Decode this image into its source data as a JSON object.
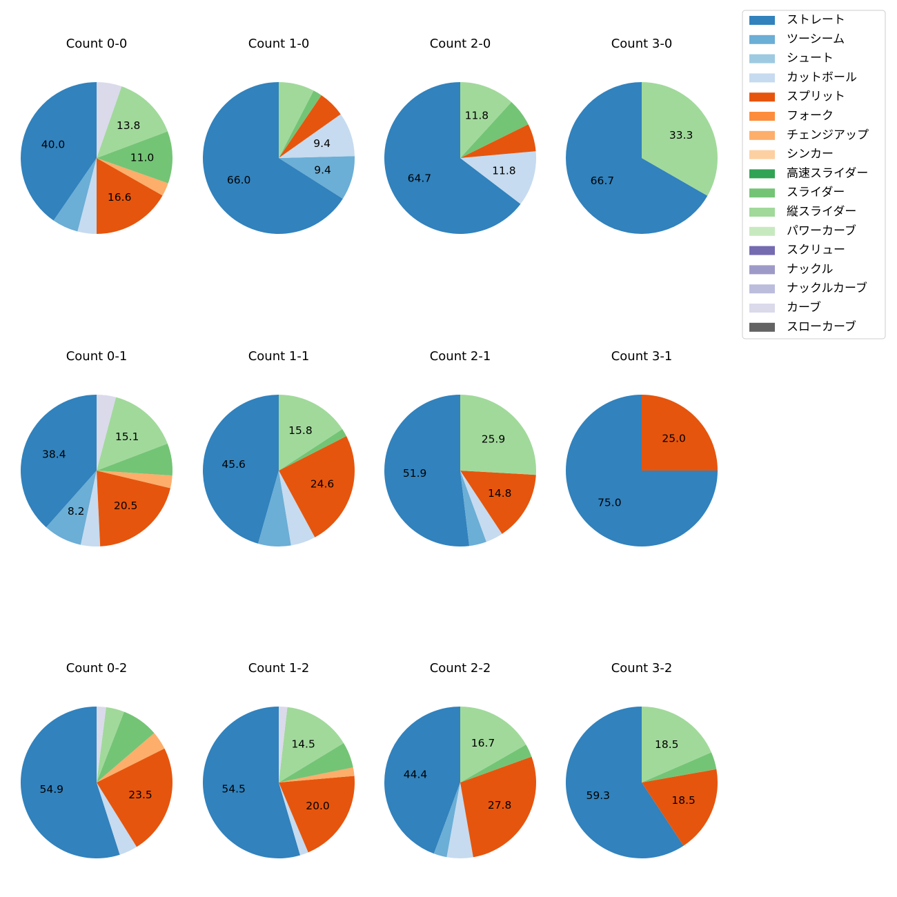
{
  "categories": [
    {
      "name": "ストレート",
      "color": "#3182bd"
    },
    {
      "name": "ツーシーム",
      "color": "#6baed6"
    },
    {
      "name": "シュート",
      "color": "#9ecae1"
    },
    {
      "name": "カットボール",
      "color": "#c6dbef"
    },
    {
      "name": "スプリット",
      "color": "#e6550d"
    },
    {
      "name": "フォーク",
      "color": "#fd8d3c"
    },
    {
      "name": "チェンジアップ",
      "color": "#fdae6b"
    },
    {
      "name": "シンカー",
      "color": "#fdd0a2"
    },
    {
      "name": "高速スライダー",
      "color": "#31a354"
    },
    {
      "name": "スライダー",
      "color": "#74c476"
    },
    {
      "name": "縦スライダー",
      "color": "#a1d99b"
    },
    {
      "name": "パワーカーブ",
      "color": "#c7e9c0"
    },
    {
      "name": "スクリュー",
      "color": "#756bb1"
    },
    {
      "name": "ナックル",
      "color": "#9e9ac8"
    },
    {
      "name": "ナックルカーブ",
      "color": "#bcbddc"
    },
    {
      "name": "カーブ",
      "color": "#dadaeb"
    },
    {
      "name": "スローカーブ",
      "color": "#636363"
    }
  ],
  "chart_data": [
    {
      "type": "pie",
      "title": "Count 0-0",
      "slices": [
        {
          "category": "ストレート",
          "value": 40.0,
          "label": "40.0"
        },
        {
          "category": "ツーシーム",
          "value": 5.5,
          "label": ""
        },
        {
          "category": "カットボール",
          "value": 4.0,
          "label": ""
        },
        {
          "category": "スプリット",
          "value": 16.6,
          "label": "16.6"
        },
        {
          "category": "チェンジアップ",
          "value": 2.8,
          "label": ""
        },
        {
          "category": "スライダー",
          "value": 11.0,
          "label": "11.0"
        },
        {
          "category": "縦スライダー",
          "value": 13.8,
          "label": "13.8"
        },
        {
          "category": "カーブ",
          "value": 5.3,
          "label": ""
        }
      ]
    },
    {
      "type": "pie",
      "title": "Count 1-0",
      "slices": [
        {
          "category": "ストレート",
          "value": 66.0,
          "label": "66.0"
        },
        {
          "category": "ツーシーム",
          "value": 9.4,
          "label": "9.4"
        },
        {
          "category": "カットボール",
          "value": 9.4,
          "label": "9.4"
        },
        {
          "category": "スプリット",
          "value": 5.7,
          "label": ""
        },
        {
          "category": "スライダー",
          "value": 1.9,
          "label": ""
        },
        {
          "category": "縦スライダー",
          "value": 7.6,
          "label": ""
        }
      ]
    },
    {
      "type": "pie",
      "title": "Count 2-0",
      "slices": [
        {
          "category": "ストレート",
          "value": 64.7,
          "label": "64.7"
        },
        {
          "category": "カットボール",
          "value": 11.8,
          "label": "11.8"
        },
        {
          "category": "スプリット",
          "value": 5.9,
          "label": ""
        },
        {
          "category": "スライダー",
          "value": 5.9,
          "label": ""
        },
        {
          "category": "縦スライダー",
          "value": 11.8,
          "label": "11.8"
        }
      ]
    },
    {
      "type": "pie",
      "title": "Count 3-0",
      "slices": [
        {
          "category": "ストレート",
          "value": 66.7,
          "label": "66.7"
        },
        {
          "category": "縦スライダー",
          "value": 33.3,
          "label": "33.3"
        }
      ]
    },
    {
      "type": "pie",
      "title": "Count 0-1",
      "slices": [
        {
          "category": "ストレート",
          "value": 38.4,
          "label": "38.4"
        },
        {
          "category": "ツーシーム",
          "value": 8.2,
          "label": "8.2"
        },
        {
          "category": "カットボール",
          "value": 4.1,
          "label": ""
        },
        {
          "category": "スプリット",
          "value": 20.5,
          "label": "20.5"
        },
        {
          "category": "チェンジアップ",
          "value": 2.7,
          "label": ""
        },
        {
          "category": "スライダー",
          "value": 6.8,
          "label": ""
        },
        {
          "category": "縦スライダー",
          "value": 15.1,
          "label": "15.1"
        },
        {
          "category": "カーブ",
          "value": 4.1,
          "label": ""
        }
      ]
    },
    {
      "type": "pie",
      "title": "Count 1-1",
      "slices": [
        {
          "category": "ストレート",
          "value": 45.6,
          "label": "45.6"
        },
        {
          "category": "ツーシーム",
          "value": 7.0,
          "label": ""
        },
        {
          "category": "カットボール",
          "value": 5.3,
          "label": ""
        },
        {
          "category": "スプリット",
          "value": 24.6,
          "label": "24.6"
        },
        {
          "category": "スライダー",
          "value": 1.7,
          "label": ""
        },
        {
          "category": "縦スライダー",
          "value": 15.8,
          "label": "15.8"
        }
      ]
    },
    {
      "type": "pie",
      "title": "Count 2-1",
      "slices": [
        {
          "category": "ストレート",
          "value": 51.9,
          "label": "51.9"
        },
        {
          "category": "ツーシーム",
          "value": 3.7,
          "label": ""
        },
        {
          "category": "カットボール",
          "value": 3.7,
          "label": ""
        },
        {
          "category": "スプリット",
          "value": 14.8,
          "label": "14.8"
        },
        {
          "category": "縦スライダー",
          "value": 25.9,
          "label": "25.9"
        }
      ]
    },
    {
      "type": "pie",
      "title": "Count 3-1",
      "slices": [
        {
          "category": "ストレート",
          "value": 75.0,
          "label": "75.0"
        },
        {
          "category": "スプリット",
          "value": 25.0,
          "label": "25.0"
        }
      ]
    },
    {
      "type": "pie",
      "title": "Count 0-2",
      "slices": [
        {
          "category": "ストレート",
          "value": 54.9,
          "label": "54.9"
        },
        {
          "category": "カットボール",
          "value": 3.9,
          "label": ""
        },
        {
          "category": "スプリット",
          "value": 23.5,
          "label": "23.5"
        },
        {
          "category": "チェンジアップ",
          "value": 3.9,
          "label": ""
        },
        {
          "category": "スライダー",
          "value": 7.8,
          "label": ""
        },
        {
          "category": "縦スライダー",
          "value": 3.9,
          "label": ""
        },
        {
          "category": "カーブ",
          "value": 2.0,
          "label": ""
        }
      ]
    },
    {
      "type": "pie",
      "title": "Count 1-2",
      "slices": [
        {
          "category": "ストレート",
          "value": 54.5,
          "label": "54.5"
        },
        {
          "category": "カットボール",
          "value": 1.8,
          "label": ""
        },
        {
          "category": "スプリット",
          "value": 20.0,
          "label": "20.0"
        },
        {
          "category": "チェンジアップ",
          "value": 1.8,
          "label": ""
        },
        {
          "category": "スライダー",
          "value": 5.5,
          "label": ""
        },
        {
          "category": "縦スライダー",
          "value": 14.5,
          "label": "14.5"
        },
        {
          "category": "カーブ",
          "value": 1.8,
          "label": ""
        }
      ]
    },
    {
      "type": "pie",
      "title": "Count 2-2",
      "slices": [
        {
          "category": "ストレート",
          "value": 44.4,
          "label": "44.4"
        },
        {
          "category": "ツーシーム",
          "value": 2.8,
          "label": ""
        },
        {
          "category": "カットボール",
          "value": 5.6,
          "label": ""
        },
        {
          "category": "スプリット",
          "value": 27.8,
          "label": "27.8"
        },
        {
          "category": "スライダー",
          "value": 2.8,
          "label": ""
        },
        {
          "category": "縦スライダー",
          "value": 16.7,
          "label": "16.7"
        }
      ]
    },
    {
      "type": "pie",
      "title": "Count 3-2",
      "slices": [
        {
          "category": "ストレート",
          "value": 59.3,
          "label": "59.3"
        },
        {
          "category": "スプリット",
          "value": 18.5,
          "label": "18.5"
        },
        {
          "category": "スライダー",
          "value": 3.7,
          "label": ""
        },
        {
          "category": "縦スライダー",
          "value": 18.5,
          "label": "18.5"
        }
      ]
    }
  ]
}
